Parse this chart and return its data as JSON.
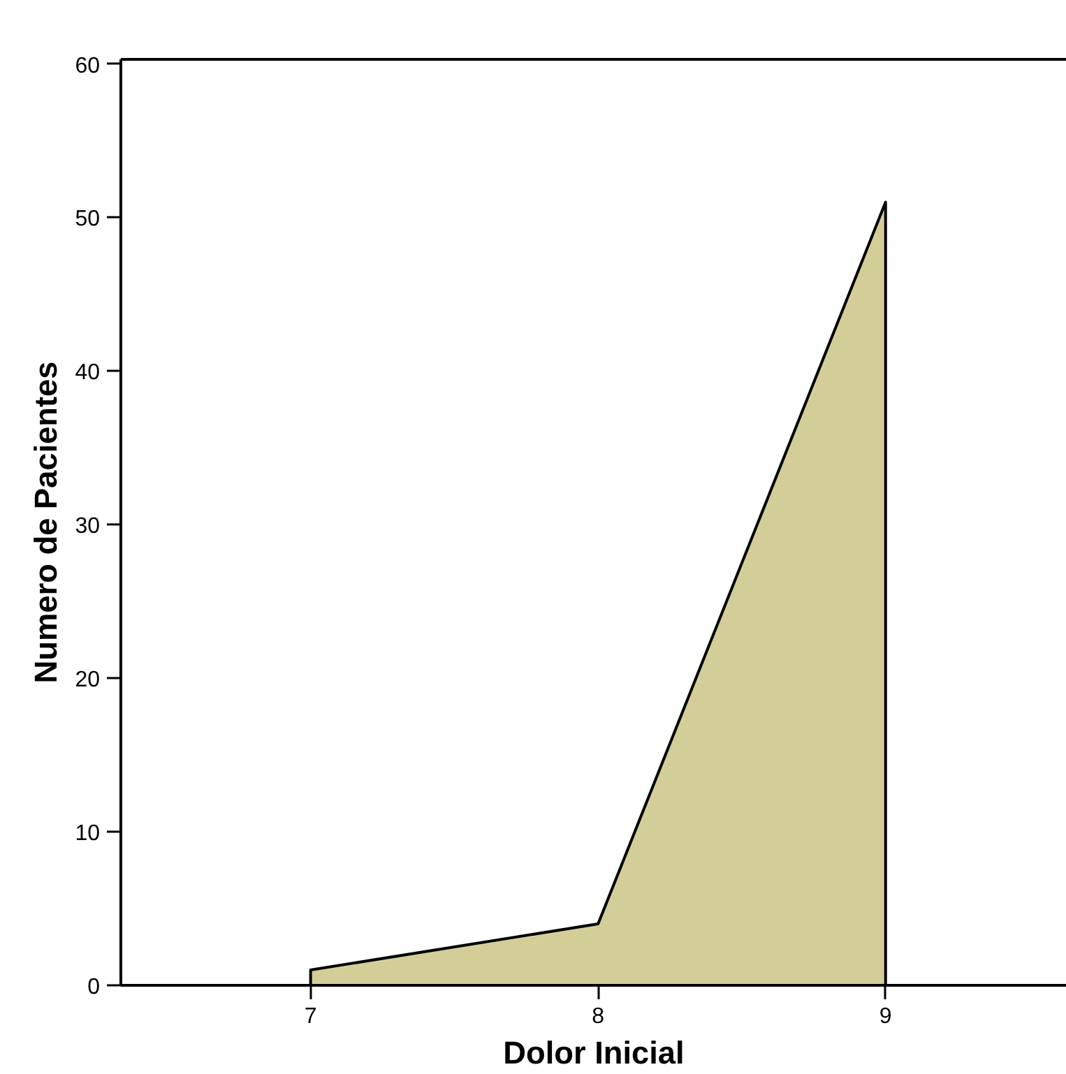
{
  "chart_data": {
    "type": "area",
    "xlabel": "Dolor Inicial",
    "ylabel": "Numero de Pacientes",
    "x": [
      7,
      8,
      9
    ],
    "series": [
      {
        "color": "#d3ce98",
        "values": [
          1,
          4,
          51
        ]
      }
    ],
    "xlim": [
      6.34,
      9.63
    ],
    "xticks": [
      7,
      8,
      9
    ],
    "ylim": [
      0,
      60.3
    ],
    "yticks": [
      0,
      10,
      20,
      30,
      40,
      50,
      60
    ],
    "grid": false
  }
}
